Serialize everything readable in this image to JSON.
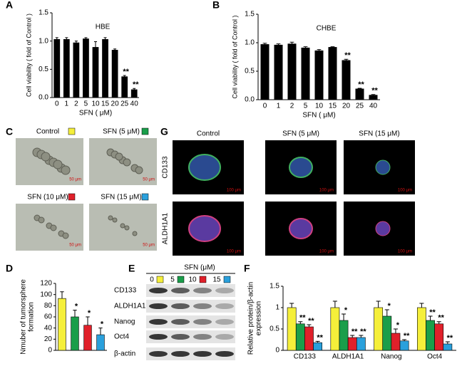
{
  "chart_data": [
    {
      "type": "bar",
      "panel": "A",
      "title": "HBE",
      "x_label": "SFN ( μM)",
      "y_label": "Cell viability ( fold of Control )",
      "categories": [
        "0",
        "1",
        "2",
        "5",
        "10",
        "15",
        "20",
        "25",
        "40"
      ],
      "values": [
        1.03,
        1.03,
        0.97,
        1.04,
        0.89,
        1.03,
        0.84,
        0.37,
        0.14
      ],
      "errors": [
        0.03,
        0.03,
        0.03,
        0.02,
        0.1,
        0.03,
        0.02,
        0.02,
        0.02
      ],
      "annotations": [
        null,
        null,
        null,
        null,
        null,
        null,
        null,
        "**",
        "**"
      ],
      "color": "#000000",
      "ylim": [
        0,
        1.5
      ],
      "yticks": [
        {
          "value": 0,
          "label": "0.0"
        },
        {
          "value": 0.5,
          "label": "0.5"
        },
        {
          "value": 1,
          "label": "1.0"
        },
        {
          "value": 1.5,
          "label": "1.5"
        }
      ]
    },
    {
      "type": "bar",
      "panel": "B",
      "title": "CHBE",
      "x_label": "SFN ( μM)",
      "y_label": "Cell viability ( fold of Control )",
      "categories": [
        "0",
        "1",
        "2",
        "5",
        "10",
        "15",
        "20",
        "25",
        "40"
      ],
      "values": [
        0.97,
        0.96,
        0.98,
        0.91,
        0.86,
        0.92,
        0.69,
        0.19,
        0.08
      ],
      "errors": [
        0.02,
        0.02,
        0.03,
        0.02,
        0.02,
        0.01,
        0.02,
        0.01,
        0.01
      ],
      "annotations": [
        null,
        null,
        null,
        null,
        null,
        null,
        "**",
        "**",
        "**"
      ],
      "color": "#000000",
      "ylim": [
        0,
        1.5
      ],
      "yticks": [
        {
          "value": 0,
          "label": "0.0"
        },
        {
          "value": 0.5,
          "label": "0.5"
        },
        {
          "value": 1,
          "label": "1.0"
        },
        {
          "value": 1.5,
          "label": "1.5"
        }
      ]
    },
    {
      "type": "bar",
      "panel": "D",
      "y_label": [
        "Nmuber of tumorsphere",
        "formation"
      ],
      "categories": [
        null,
        null,
        null,
        null
      ],
      "values": [
        93,
        60,
        45,
        28
      ],
      "errors": [
        12,
        12,
        15,
        12
      ],
      "annotations": [
        null,
        "*",
        "*",
        "*"
      ],
      "colors": [
        "#f5ef3a",
        "#1a9e4a",
        "#e0202a",
        "#2aa0dc"
      ],
      "ylim": [
        0,
        120
      ],
      "yticks": [
        0,
        20,
        40,
        60,
        80,
        100,
        120
      ]
    },
    {
      "type": "grouped_bar",
      "panel": "F",
      "y_label": [
        "Relative protein/β-actin",
        "expression"
      ],
      "categories": [
        "CD133",
        "ALDH1A1",
        "Nanog",
        "Oct4"
      ],
      "series": [
        {
          "name": "0",
          "color": "#f5ef3a",
          "values": [
            1,
            1,
            1,
            1
          ],
          "errors": [
            0.1,
            0.15,
            0.15,
            0.1
          ],
          "annotations": [
            null,
            null,
            null,
            null
          ]
        },
        {
          "name": "5",
          "color": "#1a9e4a",
          "values": [
            0.62,
            0.7,
            0.8,
            0.7
          ],
          "errors": [
            0.05,
            0.15,
            0.15,
            0.1
          ],
          "annotations": [
            "**",
            "*",
            "*",
            "**"
          ]
        },
        {
          "name": "10",
          "color": "#e0202a",
          "values": [
            0.55,
            0.3,
            0.4,
            0.62
          ],
          "errors": [
            0.05,
            0.05,
            0.1,
            0.05
          ],
          "annotations": [
            "**",
            "**",
            "*",
            "**"
          ]
        },
        {
          "name": "15",
          "color": "#2aa0dc",
          "values": [
            0.18,
            0.3,
            0.22,
            0.15
          ],
          "errors": [
            0.03,
            0.05,
            0.03,
            0.05
          ],
          "annotations": [
            "**",
            "**",
            "**",
            "**"
          ]
        }
      ],
      "ylim": [
        0,
        1.5
      ],
      "yticks": [
        0,
        0.5,
        1,
        1.5
      ]
    }
  ],
  "images": {
    "C": {
      "panel": "C",
      "labels": [
        "Control",
        "SFN (5 μM)",
        "SFN (10 μM)",
        "SFN (15 μM)"
      ],
      "scale": "50 μm"
    },
    "G": {
      "panel": "G",
      "columns": [
        "Control",
        "SFN (5 μM)",
        "SFN (15 μM)"
      ],
      "rows": [
        "CD133",
        "ALDH1A1"
      ],
      "scale": "100 μm"
    },
    "E": {
      "panel": "E",
      "title": "SFN (μM)",
      "rows": [
        "CD133",
        "ALDH1A1",
        "Nanog",
        "Oct4",
        "β-actin"
      ]
    }
  }
}
